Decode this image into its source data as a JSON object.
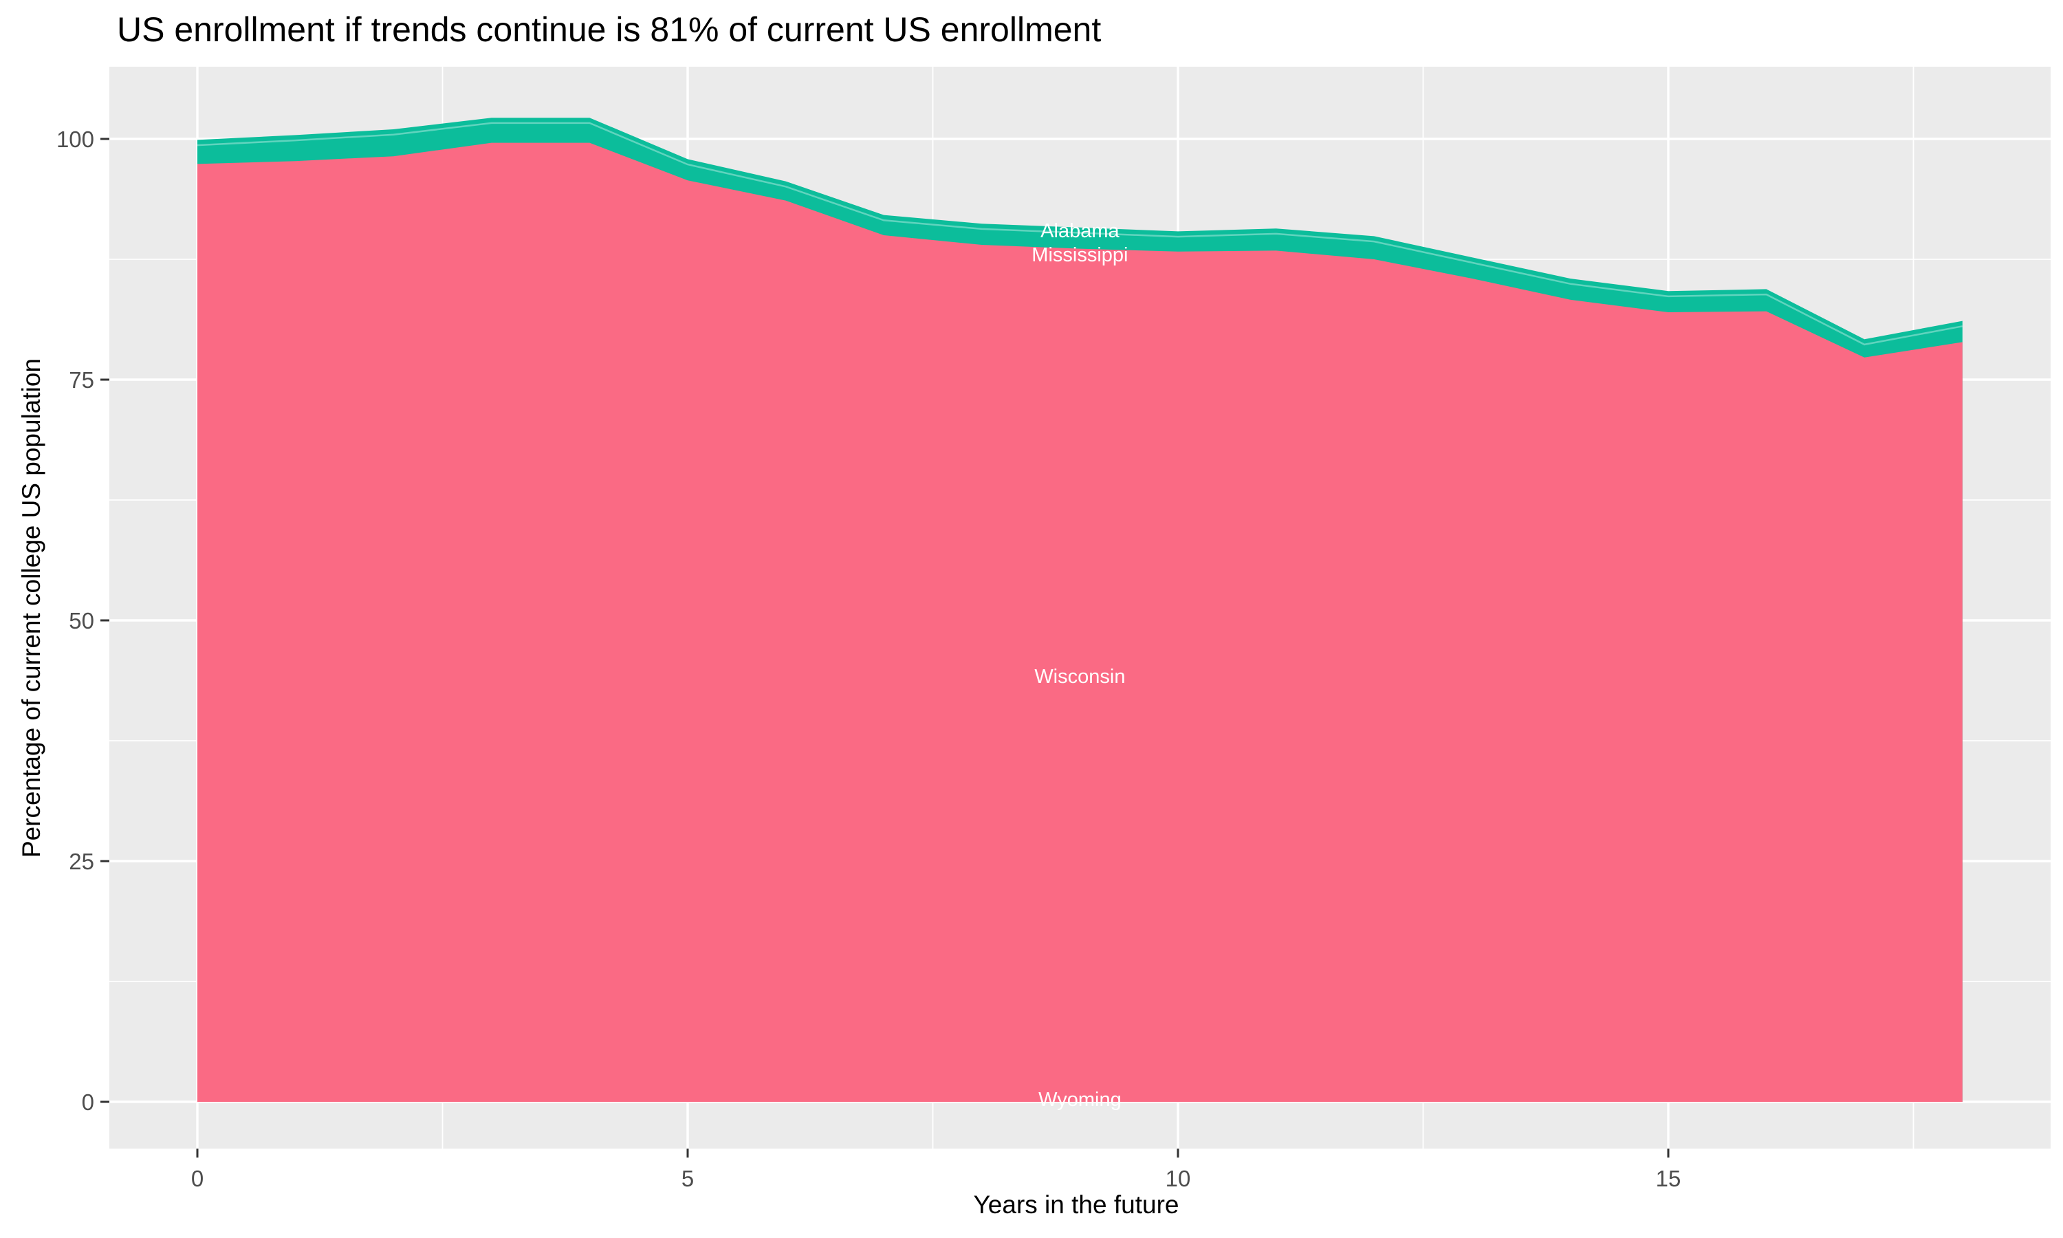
{
  "title": "US enrollment if trends continue is 81% of current US enrollment",
  "x_axis": {
    "label": "Years in the future"
  },
  "y_axis": {
    "label": "Percentage of current college US population"
  },
  "chart_data": {
    "type": "area",
    "stacked": true,
    "title": "US enrollment if trends continue is 81% of current US enrollment",
    "xlabel": "Years in the future",
    "ylabel": "Percentage of current college US population",
    "x": [
      0,
      1,
      2,
      3,
      4,
      5,
      6,
      7,
      8,
      9,
      10,
      11,
      12,
      13,
      14,
      15,
      16,
      17,
      18
    ],
    "series": [
      {
        "name": "pink_states_area_top_boundary",
        "description": "Top boundary of the large pink stacked area (remaining states; Wisconsin and Wyoming labels sit inside it)",
        "color": "#FA6A84",
        "values": [
          97.4,
          97.7,
          98.2,
          99.6,
          99.6,
          95.7,
          93.6,
          90.0,
          89.0,
          88.6,
          88.3,
          88.4,
          87.5,
          85.5,
          83.3,
          82.0,
          82.1,
          77.3,
          78.9
        ]
      },
      {
        "name": "total_stack_top_boundary",
        "description": "Overall top of the stack (thin teal band above the pink area; Alabama and Mississippi labels sit near it)",
        "color": "#0CBD9B",
        "values": [
          99.9,
          100.4,
          101.0,
          102.2,
          102.2,
          97.9,
          95.6,
          92.1,
          91.2,
          90.8,
          90.4,
          90.7,
          89.9,
          87.7,
          85.5,
          84.2,
          84.4,
          79.2,
          81.1
        ]
      }
    ],
    "inner_boundary_offset": 0.55,
    "annotations": [
      {
        "text": "Alabama",
        "x": 9,
        "y": 90.5
      },
      {
        "text": "Mississippi",
        "x": 9,
        "y": 88.0
      },
      {
        "text": "Wisconsin",
        "x": 9,
        "y": 44.2
      },
      {
        "text": "Wyoming",
        "x": 9,
        "y": 0.3
      }
    ],
    "x_ticks": [
      [
        0,
        "0"
      ],
      [
        5,
        "5"
      ],
      [
        10,
        "10"
      ],
      [
        15,
        "15"
      ]
    ],
    "y_ticks": [
      [
        0,
        "0"
      ],
      [
        25,
        "25"
      ],
      [
        50,
        "50"
      ],
      [
        75,
        "75"
      ],
      [
        100,
        "100"
      ]
    ],
    "x_minor": [
      2.5,
      7.5,
      12.5,
      17.5
    ],
    "y_minor": [
      12.5,
      37.5,
      62.5,
      87.5
    ],
    "xlim": [
      -0.9,
      18.9
    ],
    "ylim": [
      -4.9,
      107.5
    ],
    "baseline": 0,
    "panel_bg": "#EBEBEB",
    "grid_color": "#FFFFFF",
    "tick_mark_color": "#333333",
    "tick_label_color": "#4D4D4D",
    "annotation_text_color": "#FFFFFF",
    "legend": "none"
  }
}
